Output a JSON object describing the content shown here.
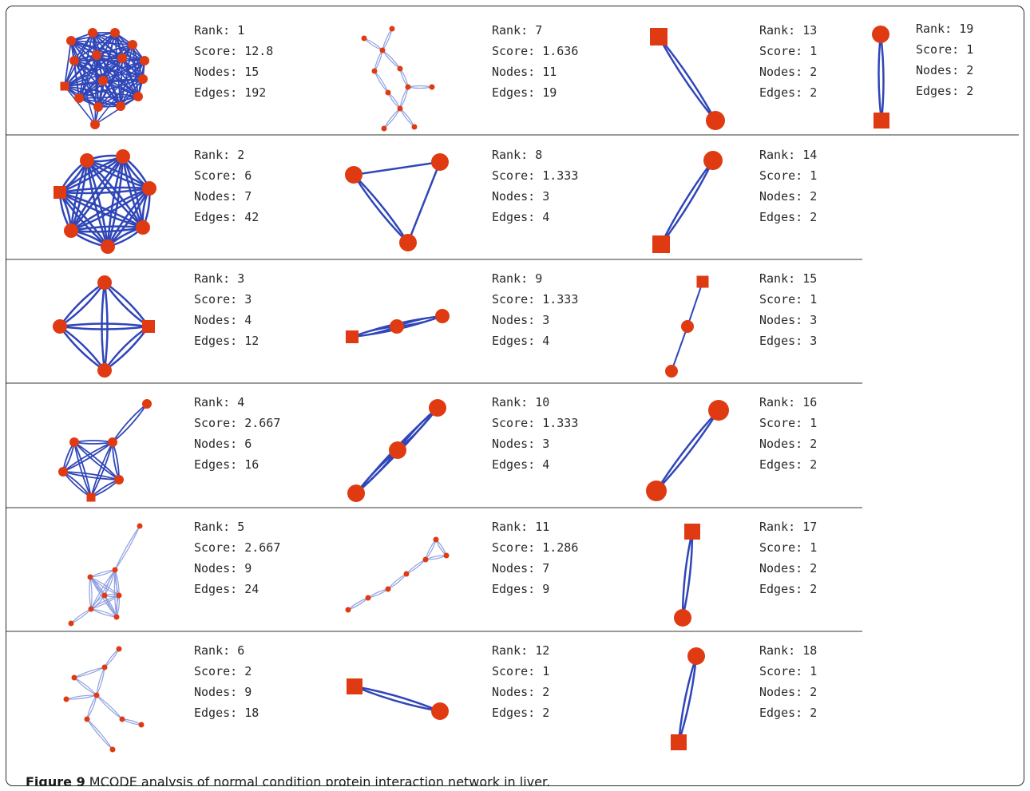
{
  "figure": {
    "caption_label": "Figure 9",
    "caption_text": "MCODE analysis of normal condition protein interaction network in liver."
  },
  "stat_labels": {
    "rank": "Rank:",
    "score": "Score:",
    "nodes": "Nodes:",
    "edges": "Edges:"
  },
  "colors": {
    "node": "#e03a12",
    "edge": "#3046b8",
    "edge_light": "#8fa0e0",
    "separator": "#9a9a9a"
  },
  "clusters": [
    {
      "rank": "1",
      "score": "12.8",
      "nodes": "15",
      "edges": "192"
    },
    {
      "rank": "2",
      "score": "6",
      "nodes": "7",
      "edges": "42"
    },
    {
      "rank": "3",
      "score": "3",
      "nodes": "4",
      "edges": "12"
    },
    {
      "rank": "4",
      "score": "2.667",
      "nodes": "6",
      "edges": "16"
    },
    {
      "rank": "5",
      "score": "2.667",
      "nodes": "9",
      "edges": "24"
    },
    {
      "rank": "6",
      "score": "2",
      "nodes": "9",
      "edges": "18"
    },
    {
      "rank": "7",
      "score": "1.636",
      "nodes": "11",
      "edges": "19"
    },
    {
      "rank": "8",
      "score": "1.333",
      "nodes": "3",
      "edges": "4"
    },
    {
      "rank": "9",
      "score": "1.333",
      "nodes": "3",
      "edges": "4"
    },
    {
      "rank": "10",
      "score": "1.333",
      "nodes": "3",
      "edges": "4"
    },
    {
      "rank": "11",
      "score": "1.286",
      "nodes": "7",
      "edges": "9"
    },
    {
      "rank": "12",
      "score": "1",
      "nodes": "2",
      "edges": "2"
    },
    {
      "rank": "13",
      "score": "1",
      "nodes": "2",
      "edges": "2"
    },
    {
      "rank": "14",
      "score": "1",
      "nodes": "2",
      "edges": "2"
    },
    {
      "rank": "15",
      "score": "1",
      "nodes": "3",
      "edges": "3"
    },
    {
      "rank": "16",
      "score": "1",
      "nodes": "2",
      "edges": "2"
    },
    {
      "rank": "17",
      "score": "1",
      "nodes": "2",
      "edges": "2"
    },
    {
      "rank": "18",
      "score": "1",
      "nodes": "2",
      "edges": "2"
    },
    {
      "rank": "19",
      "score": "1",
      "nodes": "2",
      "edges": "2"
    }
  ]
}
